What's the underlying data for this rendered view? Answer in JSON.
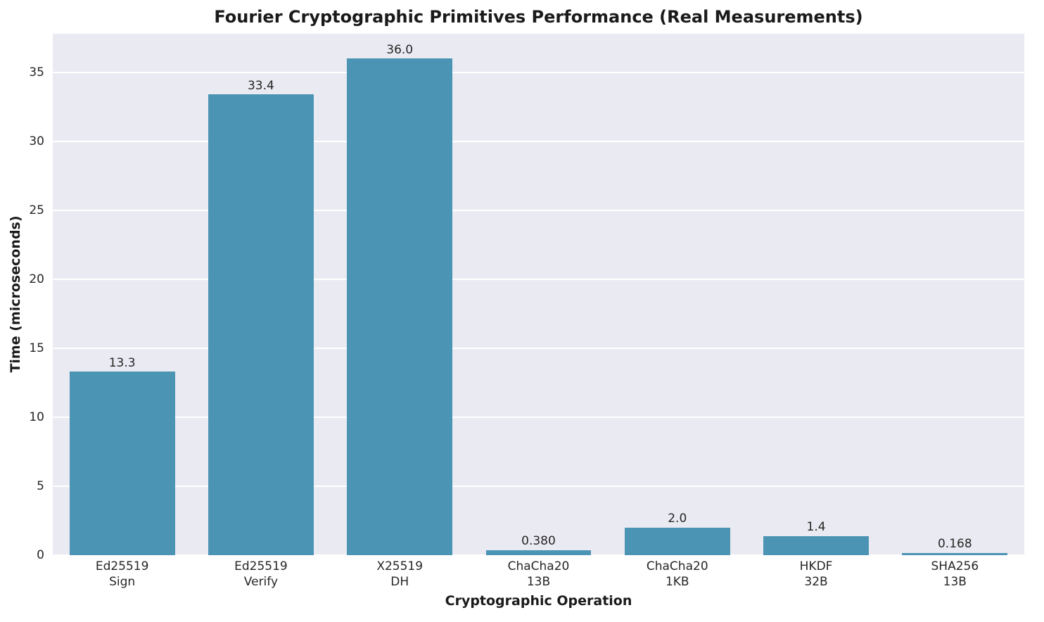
{
  "chart_data": {
    "type": "bar",
    "title": "Fourier Cryptographic Primitives Performance (Real Measurements)",
    "xlabel": "Cryptographic Operation",
    "ylabel": "Time (microseconds)",
    "categories": [
      "Ed25519\nSign",
      "Ed25519\nVerify",
      "X25519\nDH",
      "ChaCha20\n13B",
      "ChaCha20\n1KB",
      "HKDF\n32B",
      "SHA256\n13B"
    ],
    "values": [
      13.3,
      33.4,
      36.0,
      0.38,
      2.0,
      1.4,
      0.168
    ],
    "value_labels": [
      "13.3",
      "33.4",
      "36.0",
      "0.380",
      "2.0",
      "1.4",
      "0.168"
    ],
    "yticks": [
      0,
      5,
      10,
      15,
      20,
      25,
      30,
      35
    ],
    "ylim": [
      0,
      37.8
    ],
    "grid": "horizontal-white",
    "legend": "none",
    "bar_color": "#4c94b4",
    "plot_background": "#eaeaf2"
  }
}
